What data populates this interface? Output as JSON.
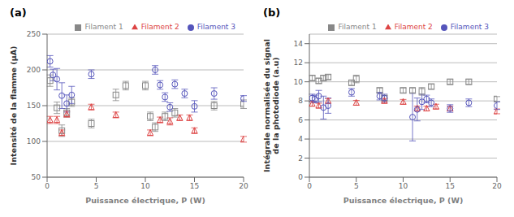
{
  "chart_data": [
    {
      "type": "scatter",
      "title": "(a)",
      "x_label": "Puissance électrique, P (W)",
      "y_label": "Intensité de la flamme (µA)",
      "xlim": [
        0,
        20
      ],
      "ylim": [
        50,
        250
      ],
      "xticks": [
        0,
        5,
        10,
        15,
        20
      ],
      "yticks": [
        50,
        100,
        150,
        200,
        250
      ],
      "grid": true,
      "legend": "upper right",
      "series": [
        {
          "name": "Filament 1",
          "color": "#888888",
          "marker": "square",
          "x": [
            0.3,
            1.0,
            1.5,
            2.0,
            2.5,
            4.5,
            7.0,
            8.0,
            10.0,
            10.5,
            11.0,
            12.0,
            13.0,
            17.0,
            20.0
          ],
          "values": [
            185,
            147,
            115,
            140,
            155,
            125,
            165,
            178,
            178,
            135,
            120,
            135,
            140,
            150,
            152
          ],
          "yerr": [
            8,
            8,
            8,
            6,
            6,
            6,
            8,
            6,
            6,
            6,
            6,
            6,
            6,
            6,
            6
          ]
        },
        {
          "name": "Filament 2",
          "color": "#dd4444",
          "marker": "triangle",
          "x": [
            0.3,
            1.0,
            1.5,
            2.0,
            4.5,
            7.0,
            10.5,
            11.5,
            12.5,
            13.5,
            14.5,
            15.0,
            20.0
          ],
          "values": [
            130,
            130,
            112,
            138,
            148,
            137,
            112,
            130,
            128,
            133,
            133,
            115,
            103
          ],
          "yerr": [
            5,
            5,
            4,
            4,
            4,
            4,
            4,
            4,
            5,
            4,
            4,
            4,
            4
          ]
        },
        {
          "name": "Filament 3",
          "color": "#5555bb",
          "marker": "circle",
          "x": [
            0.3,
            0.6,
            1.0,
            1.5,
            2.0,
            2.5,
            4.5,
            11.0,
            11.5,
            12.0,
            12.5,
            13.0,
            14.0,
            15.0,
            17.0,
            20.0
          ],
          "values": [
            212,
            193,
            187,
            164,
            153,
            165,
            194,
            200,
            179,
            162,
            148,
            180,
            167,
            149,
            167,
            160
          ],
          "yerr": [
            8,
            8,
            15,
            18,
            12,
            12,
            6,
            6,
            6,
            6,
            6,
            6,
            6,
            8,
            8,
            4
          ]
        }
      ]
    },
    {
      "type": "scatter",
      "title": "(b)",
      "x_label": "Puissance électrique, P (W)",
      "y_label": "Intégrale normalisée du signal\nde la photodiode (a.u)",
      "xlim": [
        0,
        20
      ],
      "ylim": [
        0,
        15
      ],
      "xticks": [
        0,
        5,
        10,
        15,
        20
      ],
      "yticks": [
        0,
        2,
        4,
        6,
        8,
        10,
        12,
        14
      ],
      "grid": true,
      "legend": "upper right",
      "series": [
        {
          "name": "Filament 1",
          "color": "#888888",
          "marker": "square",
          "x": [
            0.3,
            1.0,
            1.5,
            2.0,
            4.5,
            5.0,
            7.5,
            8.0,
            10.0,
            11.0,
            12.0,
            13.0,
            15.0,
            17.0,
            20.0
          ],
          "values": [
            10.4,
            10.1,
            10.4,
            10.5,
            9.9,
            10.3,
            9.1,
            8.3,
            9.1,
            9.1,
            9.0,
            9.5,
            10.0,
            10.0,
            8.2
          ],
          "yerr": [
            0.25,
            0.25,
            0.25,
            0.25,
            0.25,
            0.4,
            0.25,
            0.25,
            0.25,
            0.25,
            0.4,
            0.25,
            0.25,
            0.25,
            0.25
          ]
        },
        {
          "name": "Filament 2",
          "color": "#dd4444",
          "marker": "triangle",
          "x": [
            0.3,
            1.0,
            2.0,
            5.0,
            8.0,
            10.0,
            11.5,
            12.5,
            13.5,
            15.0,
            20.0
          ],
          "values": [
            7.7,
            7.5,
            8.0,
            7.8,
            8.0,
            7.9,
            7.2,
            7.2,
            7.4,
            7.2,
            6.9
          ],
          "yerr": [
            0.25,
            0.25,
            0.25,
            0.25,
            0.25,
            0.25,
            0.25,
            0.25,
            0.25,
            0.25,
            0.25
          ]
        },
        {
          "name": "Filament 3",
          "color": "#5555bb",
          "marker": "circle",
          "x": [
            0.3,
            0.6,
            1.0,
            1.5,
            2.0,
            4.5,
            7.5,
            8.0,
            11.0,
            11.5,
            12.0,
            12.5,
            13.0,
            15.0,
            17.0,
            20.0
          ],
          "values": [
            8.3,
            8.2,
            8.5,
            7.3,
            7.5,
            8.9,
            8.5,
            8.3,
            6.3,
            7.1,
            7.9,
            8.2,
            7.8,
            7.2,
            7.8,
            7.5
          ],
          "yerr": [
            0.4,
            0.4,
            0.6,
            1.2,
            0.8,
            0.4,
            0.4,
            0.4,
            2.5,
            1.2,
            0.8,
            0.4,
            0.4,
            0.4,
            0.4,
            0.4
          ]
        }
      ]
    }
  ]
}
